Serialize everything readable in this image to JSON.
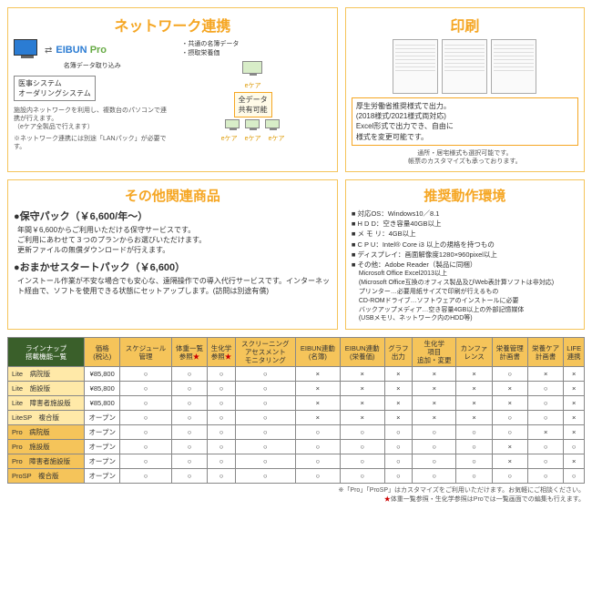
{
  "panels": {
    "network": {
      "title": "ネットワーク連携",
      "import_label": "名簿データ取り込み",
      "system_label": "医事システム\nオーダリングシステム",
      "left_note": "施設内ネットワークを利用し、複数台のパソコンで連携が行えます。",
      "left_note2": "（eケア全製品で行えます）",
      "left_note3": "※ネットワーク連携には別途「LANパック」が必要です。",
      "eibun": "EIBUN",
      "pro": "Pro",
      "common_data": "・共通の名簿データ\n・摂取栄養価",
      "share_label": "全データ\n共有可能",
      "ecare": "eケア"
    },
    "print": {
      "title": "印刷",
      "box_text": "厚生労働省推奨様式で出力。\n(2018様式/2021様式両対応)\nExcel形式で出力でき、自由に\n様式を変更可能です。",
      "sub_text": "通所・居宅様式も選択可能です。\n帳票のカスタマイズも承っております。"
    },
    "products": {
      "title": "その他関連商品",
      "maint_title": "●保守パック（￥6,600/年～）",
      "maint_desc": "年間￥6,600からご利用いただける保守サービスです。\nご利用にあわせて３つのプランからお選びいただけます。\n更新ファイルの無償ダウンロードが行えます。",
      "start_title": "●おまかせスタートパック（￥6,600）",
      "start_desc": "インストール作業が不安な場合でも安心な、遠隔操作での導入代行サービスです。インターネット経由で、ソフトを使用できる状態にセットアップします。(訪問は別途有償)"
    },
    "specs": {
      "title": "推奨動作環境",
      "items": [
        "対応OS：Windows10／8.1",
        "H D D：空き容量40GB以上",
        "メ モ リ：4GB以上",
        "C P U：Intel® Core i3 以上の規格を持つもの",
        "ディスプレイ：画面解像度1280×960pixel以上",
        "その他：Adobe Reader（製品に同梱）"
      ],
      "sub": [
        "Microsoft Office Excel2013以上",
        "(Microsoft Office互換のオフィス製品及びWeb表計算ソフトは非対応)",
        "プリンター…必要用紙サイズで印刷が行えるもの",
        "CD-ROMドライブ…ソフトウェアのインストールに必要",
        "バックアップメディア…空き容量4GB以上の外部記憶媒体",
        "(USBメモリ、ネットワーク内のHDD等)"
      ]
    }
  },
  "table": {
    "corner": "ラインナップ\n搭載機能一覧",
    "headers": [
      "価格\n(税込)",
      "スケジュール\n管理",
      "体重一覧\n参照★",
      "生化学\n参照★",
      "スクリーニング\nアセスメント\nモニタリング",
      "EIBUN連動\n(名簿)",
      "EIBUN連動\n(栄養価)",
      "グラフ\n出力",
      "生化学\n項目\n追加・変更",
      "カンファ\nレンス",
      "栄養管理\n計画書",
      "栄養ケア\n計画書",
      "LIFE\n連携"
    ],
    "rows": [
      {
        "name": "Lite　病院版",
        "cls": "prod-type",
        "price": "¥85,800",
        "cells": [
          "○",
          "○",
          "○",
          "○",
          "×",
          "×",
          "×",
          "×",
          "×",
          "○",
          "×",
          "×"
        ]
      },
      {
        "name": "Lite　施設版",
        "cls": "prod-type",
        "price": "¥85,800",
        "cells": [
          "○",
          "○",
          "○",
          "○",
          "×",
          "×",
          "×",
          "×",
          "×",
          "×",
          "○",
          "×"
        ]
      },
      {
        "name": "Lite　障害者施設版",
        "cls": "prod-type",
        "price": "¥85,800",
        "cells": [
          "○",
          "○",
          "○",
          "○",
          "×",
          "×",
          "×",
          "×",
          "×",
          "×",
          "○",
          "×"
        ]
      },
      {
        "name": "LiteSP　複合版",
        "cls": "prod-type",
        "price": "オープン",
        "cells": [
          "○",
          "○",
          "○",
          "○",
          "×",
          "×",
          "×",
          "×",
          "×",
          "○",
          "○",
          "×"
        ]
      },
      {
        "name": "Pro　病院版",
        "cls": "prod-pro",
        "price": "オープン",
        "cells": [
          "○",
          "○",
          "○",
          "○",
          "○",
          "○",
          "○",
          "○",
          "○",
          "○",
          "×",
          "×"
        ]
      },
      {
        "name": "Pro　施設版",
        "cls": "prod-pro",
        "price": "オープン",
        "cells": [
          "○",
          "○",
          "○",
          "○",
          "○",
          "○",
          "○",
          "○",
          "○",
          "×",
          "○",
          "○"
        ]
      },
      {
        "name": "Pro　障害者施設版",
        "cls": "prod-pro",
        "price": "オープン",
        "cells": [
          "○",
          "○",
          "○",
          "○",
          "○",
          "○",
          "○",
          "○",
          "○",
          "×",
          "○",
          "×"
        ]
      },
      {
        "name": "ProSP　複合版",
        "cls": "prod-pro",
        "price": "オープン",
        "cells": [
          "○",
          "○",
          "○",
          "○",
          "○",
          "○",
          "○",
          "○",
          "○",
          "○",
          "○",
          "○"
        ]
      }
    ]
  },
  "footnotes": [
    "※「Pro」「ProSP」はカスタマイズをご利用いただけます。お気軽にご相談ください。",
    "★体重一覧参照・生化学参照はProでは一覧画面での編集も行えます。"
  ]
}
